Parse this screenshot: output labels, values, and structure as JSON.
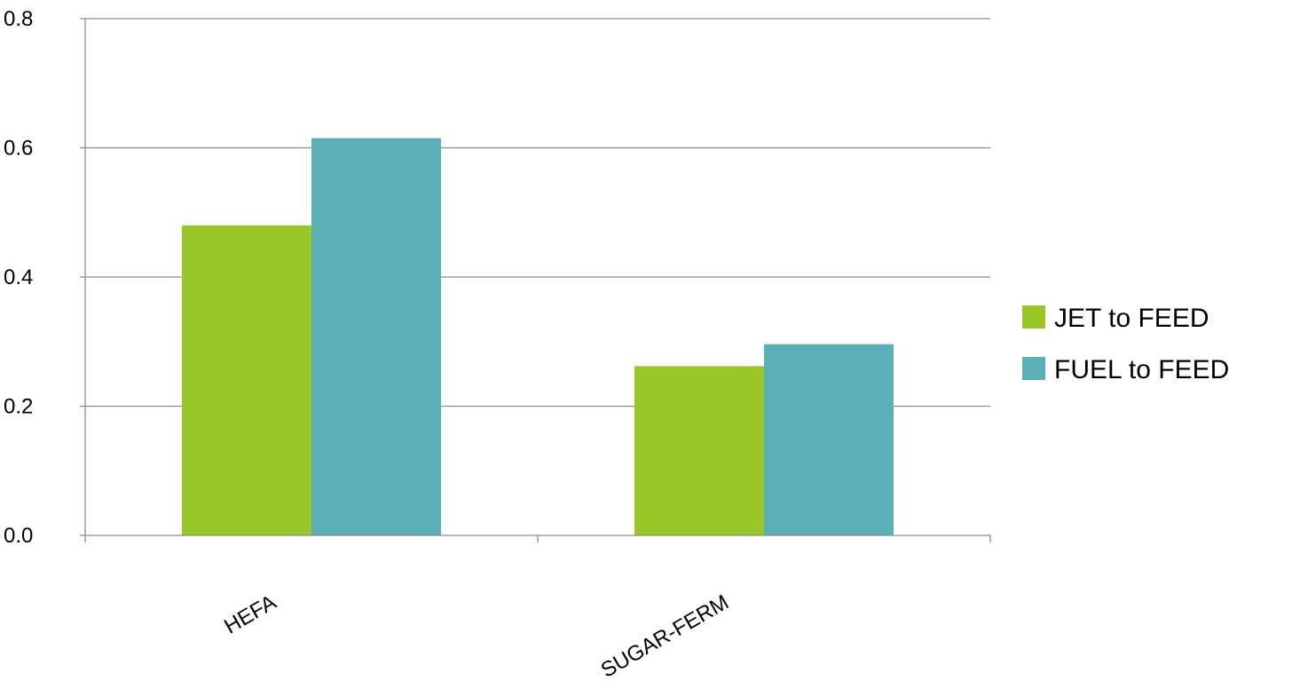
{
  "chart_data": {
    "type": "bar",
    "categories": [
      "HEFA",
      "SUGAR-FERM"
    ],
    "series": [
      {
        "name": "JET to FEED",
        "values": [
          0.48,
          0.262
        ],
        "color": "#9bc628"
      },
      {
        "name": "FUEL to FEED",
        "values": [
          0.615,
          0.296
        ],
        "color": "#5bb0b8"
      }
    ],
    "yticks": [
      "0.0",
      "0.2",
      "0.4",
      "0.6",
      "0.8"
    ],
    "ylim": [
      0,
      0.8
    ],
    "grid": true,
    "legend_position": "right"
  }
}
